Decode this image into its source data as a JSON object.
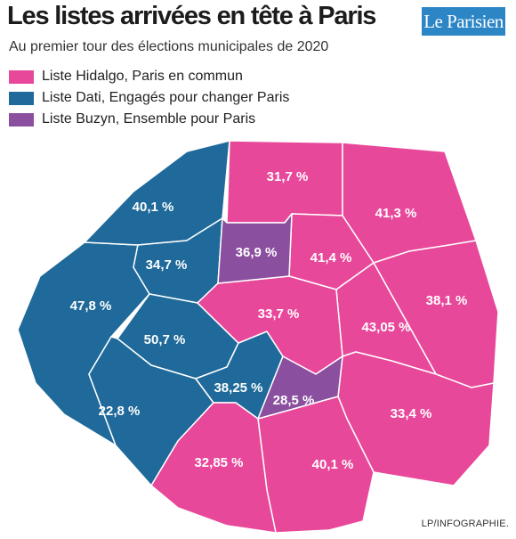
{
  "title": "Les listes arrivées en tête à Paris",
  "subtitle": "Au premier tour des élections municipales de 2020",
  "logo": "Le Parisien",
  "credit": "LP/INFOGRAPHIE.",
  "colors": {
    "hidalgo": "#e8489a",
    "dati": "#1f6a9a",
    "buzyn": "#8a4f9e"
  },
  "legend": [
    {
      "key": "hidalgo",
      "label": "Liste Hidalgo, Paris en commun"
    },
    {
      "key": "dati",
      "label": "Liste Dati, Engagés pour changer Paris"
    },
    {
      "key": "buzyn",
      "label": "Liste Buzyn, Ensemble pour Paris"
    }
  ],
  "districts": [
    {
      "id": "16",
      "list": "dati",
      "value": "47,8 %"
    },
    {
      "id": "17",
      "list": "dati",
      "value": "40,1 %"
    },
    {
      "id": "8",
      "list": "dati",
      "value": "34,7 %"
    },
    {
      "id": "7",
      "list": "dati",
      "value": "50,7 %"
    },
    {
      "id": "15",
      "list": "dati",
      "value": "22,8 %"
    },
    {
      "id": "6",
      "list": "dati",
      "value": "38,25 %"
    },
    {
      "id": "18",
      "list": "hidalgo",
      "value": "31,7 %"
    },
    {
      "id": "19",
      "list": "hidalgo",
      "value": "41,3 %"
    },
    {
      "id": "10",
      "list": "hidalgo",
      "value": "41,4 %"
    },
    {
      "id": "20",
      "list": "hidalgo",
      "value": "38,1 %"
    },
    {
      "id": "11",
      "list": "hidalgo",
      "value": "43,05 %"
    },
    {
      "id": "centre",
      "list": "hidalgo",
      "value": "33,7 %"
    },
    {
      "id": "12",
      "list": "hidalgo",
      "value": "33,4 %"
    },
    {
      "id": "13",
      "list": "hidalgo",
      "value": "40,1 %"
    },
    {
      "id": "14",
      "list": "hidalgo",
      "value": "32,85 %"
    },
    {
      "id": "9",
      "list": "buzyn",
      "value": "36,9 %"
    },
    {
      "id": "5",
      "list": "buzyn",
      "value": "28,5 %"
    }
  ]
}
